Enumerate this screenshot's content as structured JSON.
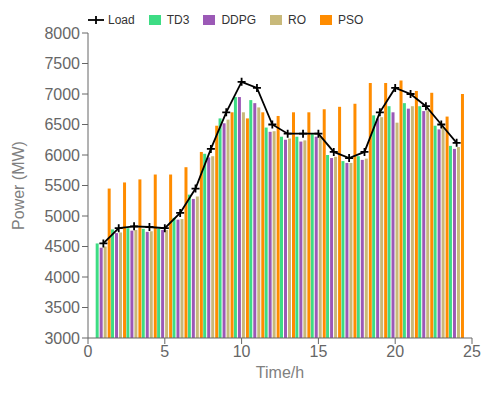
{
  "chart_data": {
    "type": "bar",
    "xlabel": "Time/h",
    "ylabel": "Power (MW)",
    "x": [
      1,
      2,
      3,
      4,
      5,
      6,
      7,
      8,
      9,
      10,
      11,
      12,
      13,
      14,
      15,
      16,
      17,
      18,
      19,
      20,
      21,
      22,
      23,
      24
    ],
    "series": [
      {
        "name": "Load",
        "type": "line",
        "color": "#000000",
        "marker": "plus",
        "values": [
          4550,
          4800,
          4830,
          4820,
          4800,
          5050,
          5450,
          6100,
          6700,
          7200,
          7100,
          6500,
          6350,
          6350,
          6350,
          6050,
          5950,
          6050,
          6700,
          7100,
          7000,
          6800,
          6500,
          6200
        ]
      },
      {
        "name": "TD3",
        "type": "bar",
        "color": "#3ddc84",
        "values": [
          4550,
          4780,
          4800,
          4790,
          4790,
          4970,
          5350,
          6020,
          6600,
          6950,
          6900,
          6450,
          6300,
          6300,
          6350,
          6000,
          5900,
          5980,
          6650,
          6800,
          6850,
          6800,
          6480,
          6150
        ]
      },
      {
        "name": "DDPG",
        "type": "bar",
        "color": "#9b59b6",
        "values": [
          4480,
          4720,
          4760,
          4740,
          4770,
          4940,
          5280,
          5960,
          6520,
          6950,
          6850,
          6380,
          6250,
          6220,
          6300,
          5950,
          5870,
          5920,
          6600,
          6700,
          6760,
          6720,
          6420,
          6100
        ]
      },
      {
        "name": "RO",
        "type": "bar",
        "color": "#c8b97a",
        "values": [
          4500,
          4730,
          4770,
          4750,
          4770,
          4950,
          5320,
          5980,
          6580,
          6700,
          6780,
          6390,
          6270,
          6240,
          6310,
          5970,
          5870,
          5940,
          6620,
          6530,
          6800,
          6730,
          6460,
          6130
        ]
      },
      {
        "name": "PSO",
        "type": "bar",
        "color": "#ff8c00",
        "values": [
          5450,
          5550,
          5600,
          5680,
          5680,
          5800,
          6050,
          6480,
          6700,
          6600,
          6700,
          6640,
          6700,
          6700,
          6750,
          6790,
          6840,
          7180,
          7180,
          7220,
          7050,
          7020,
          6630,
          7000
        ]
      }
    ],
    "xlim": [
      0,
      25
    ],
    "xticks": [
      0,
      5,
      10,
      15,
      20,
      25
    ],
    "ylim": [
      3000,
      8000
    ],
    "yticks": [
      3000,
      3500,
      4000,
      4500,
      5000,
      5500,
      6000,
      6500,
      7000,
      7500,
      8000
    ],
    "grid": false,
    "legend": "upper left"
  }
}
